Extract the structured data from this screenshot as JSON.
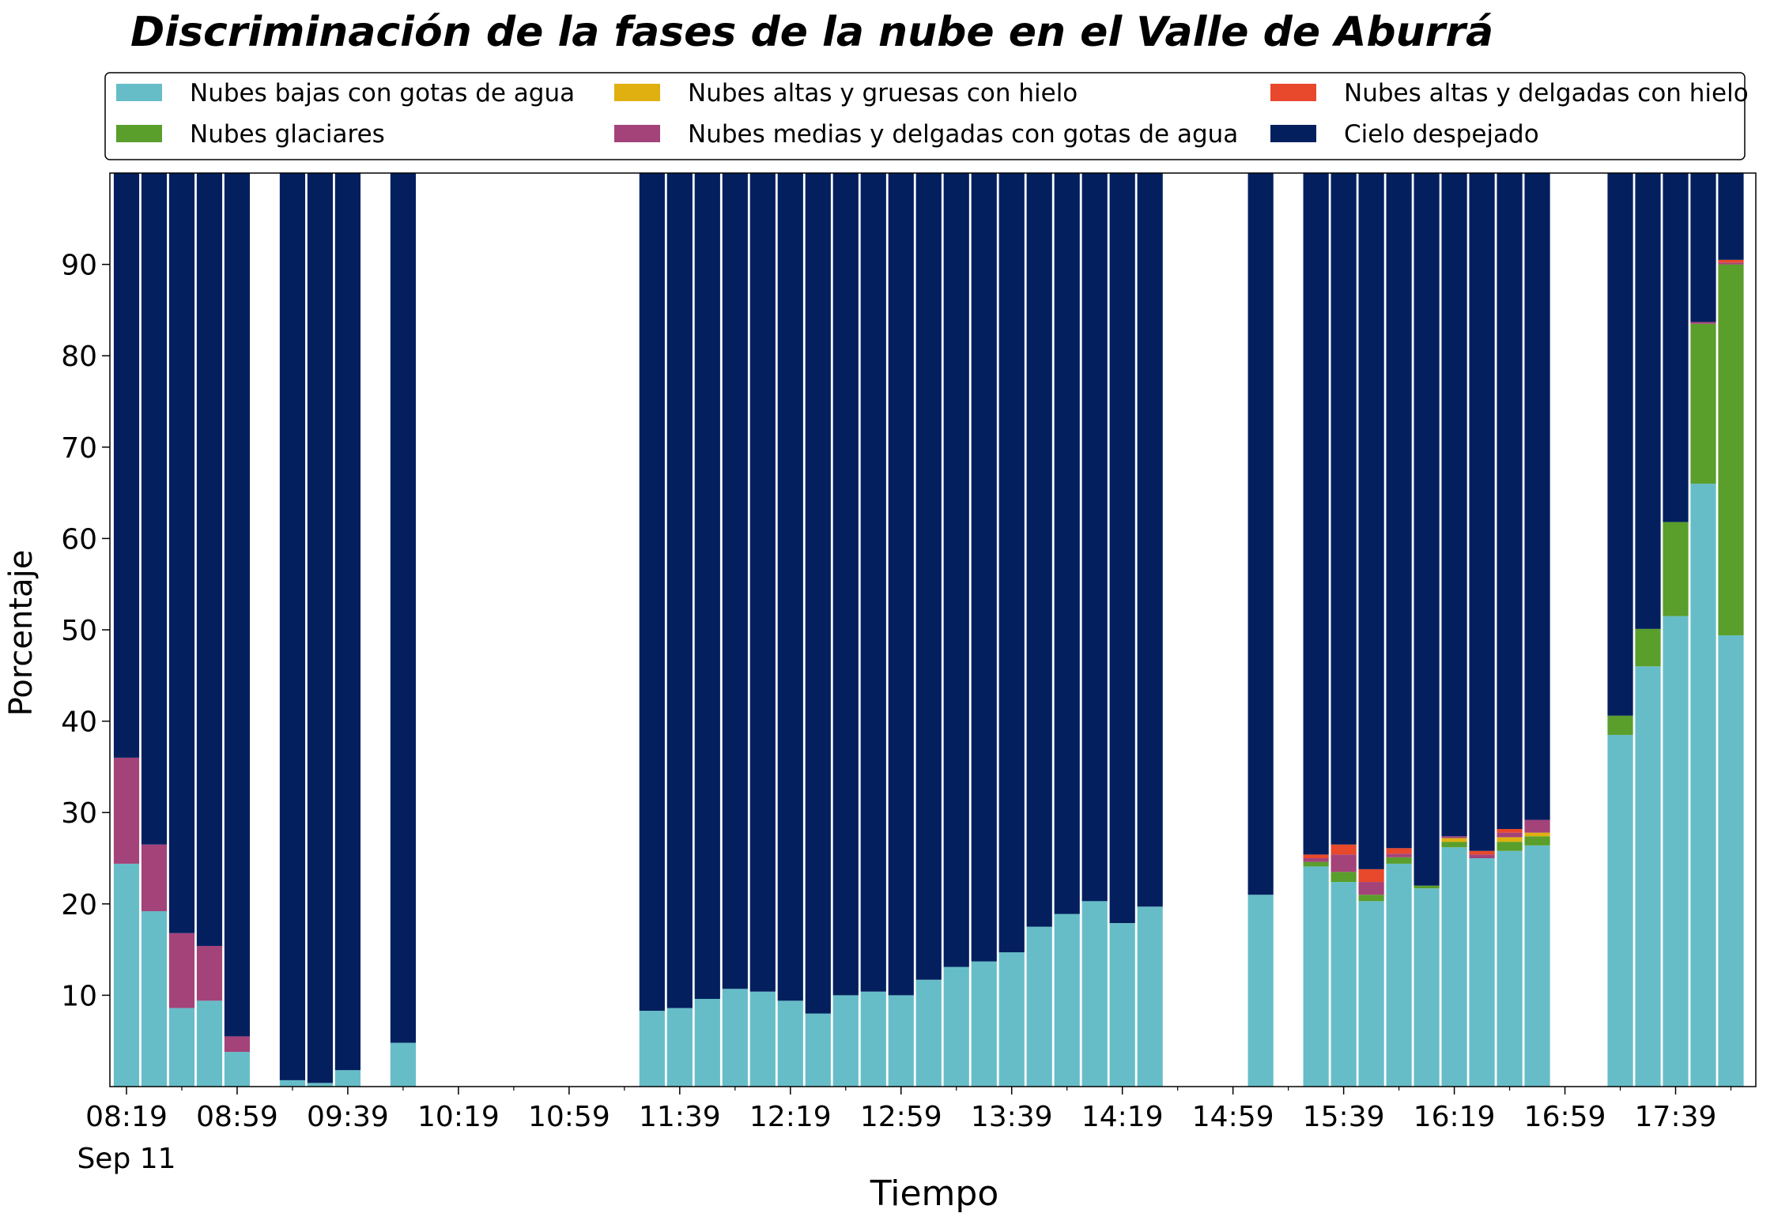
{
  "chart_data": {
    "type": "stacked_bar",
    "title": "Discriminación de la fases de la nube en el Valle de Aburrá",
    "xlabel": "Tiempo",
    "ylabel": "Porcentaje",
    "x_date_label": "Sep 11",
    "x": [
      "08:19",
      "08:29",
      "08:39",
      "08:49",
      "08:59",
      "09:19",
      "09:29",
      "09:39",
      "09:59",
      "11:29",
      "11:39",
      "11:49",
      "11:59",
      "12:09",
      "12:19",
      "12:29",
      "12:39",
      "12:49",
      "12:59",
      "13:09",
      "13:19",
      "13:29",
      "13:39",
      "13:49",
      "13:59",
      "14:09",
      "14:19",
      "14:29",
      "15:09",
      "15:29",
      "15:39",
      "15:49",
      "15:59",
      "16:09",
      "16:19",
      "16:29",
      "16:39",
      "16:49",
      "17:19",
      "17:29",
      "17:39",
      "17:49",
      "17:59"
    ],
    "xlim": [
      "08:13",
      "18:08"
    ],
    "xticks": [
      "08:19",
      "08:59",
      "09:39",
      "10:19",
      "10:59",
      "11:39",
      "12:19",
      "12:59",
      "13:39",
      "14:19",
      "14:59",
      "15:39",
      "16:19",
      "16:59",
      "17:39"
    ],
    "xminorticks": [
      "08:39",
      "09:19",
      "09:59",
      "10:39",
      "11:19",
      "11:59",
      "12:39",
      "13:19",
      "13:59",
      "14:39",
      "15:19",
      "15:59",
      "16:39",
      "17:19",
      "17:59"
    ],
    "ylim": [
      0,
      100
    ],
    "yticks": [
      10,
      20,
      30,
      40,
      50,
      60,
      70,
      80,
      90
    ],
    "legend": "top",
    "series": [
      {
        "name": "Nubes bajas con gotas de agua",
        "color": "#66bdc8",
        "values": [
          24.4,
          19.2,
          8.6,
          9.4,
          3.8,
          0.7,
          0.4,
          1.8,
          4.8,
          8.3,
          8.6,
          9.6,
          10.7,
          10.4,
          9.4,
          8.0,
          10.0,
          10.4,
          10.0,
          11.7,
          13.1,
          13.7,
          14.7,
          17.5,
          18.9,
          20.3,
          17.9,
          19.7,
          21.0,
          24.1,
          22.4,
          20.3,
          24.4,
          21.7,
          26.2,
          25.0,
          25.8,
          26.4,
          38.5,
          46.0,
          51.5,
          66.0,
          49.4
        ]
      },
      {
        "name": "Nubes glaciares",
        "color": "#5a9e2b",
        "values": [
          0,
          0,
          0,
          0,
          0,
          0,
          0,
          0,
          0,
          0,
          0,
          0,
          0,
          0,
          0,
          0,
          0,
          0,
          0,
          0,
          0,
          0,
          0,
          0,
          0,
          0,
          0,
          0,
          0,
          0.5,
          1.1,
          0.7,
          0.7,
          0.3,
          0.6,
          0,
          1.0,
          1.0,
          2.1,
          4.1,
          10.3,
          17.5,
          40.6
        ]
      },
      {
        "name": "Nubes altas y gruesas con hielo",
        "color": "#e0b010",
        "values": [
          0,
          0,
          0,
          0,
          0,
          0,
          0,
          0,
          0,
          0,
          0,
          0,
          0,
          0,
          0,
          0,
          0,
          0,
          0,
          0,
          0,
          0,
          0,
          0,
          0,
          0,
          0,
          0,
          0,
          0,
          0,
          0,
          0,
          0,
          0.4,
          0,
          0.5,
          0.4,
          0,
          0,
          0,
          0,
          0
        ]
      },
      {
        "name": "Nubes medias y delgadas con gotas de agua",
        "color": "#a3437a",
        "values": [
          11.6,
          7.3,
          8.2,
          6.0,
          1.7,
          0,
          0,
          0,
          0,
          0,
          0,
          0,
          0,
          0,
          0,
          0,
          0,
          0,
          0,
          0,
          0,
          0,
          0,
          0,
          0,
          0,
          0,
          0,
          0,
          0.4,
          1.9,
          1.4,
          0.4,
          0,
          0.2,
          0.4,
          0.5,
          1.4,
          0,
          0,
          0,
          0.2,
          0.2
        ]
      },
      {
        "name": "Nubes altas y delgadas con hielo",
        "color": "#e8482b",
        "values": [
          0,
          0,
          0,
          0,
          0,
          0,
          0,
          0,
          0,
          0,
          0,
          0,
          0,
          0,
          0,
          0,
          0,
          0,
          0,
          0,
          0,
          0,
          0,
          0,
          0,
          0,
          0,
          0,
          0,
          0.4,
          1.1,
          1.4,
          0.6,
          0,
          0,
          0.4,
          0.4,
          0,
          0,
          0,
          0,
          0,
          0.3
        ]
      },
      {
        "name": "Cielo despejado",
        "color": "#031f5e",
        "values": [
          64.0,
          73.5,
          83.2,
          84.6,
          94.5,
          99.3,
          99.6,
          98.2,
          95.2,
          91.7,
          91.4,
          90.4,
          89.3,
          89.6,
          90.6,
          92.0,
          90.0,
          89.6,
          90.0,
          88.3,
          86.9,
          86.3,
          85.3,
          82.5,
          81.1,
          79.7,
          82.1,
          80.3,
          79.0,
          74.6,
          73.5,
          76.2,
          73.9,
          78.0,
          72.6,
          74.2,
          71.8,
          70.8,
          59.4,
          49.9,
          38.2,
          16.3,
          9.5
        ]
      }
    ]
  }
}
